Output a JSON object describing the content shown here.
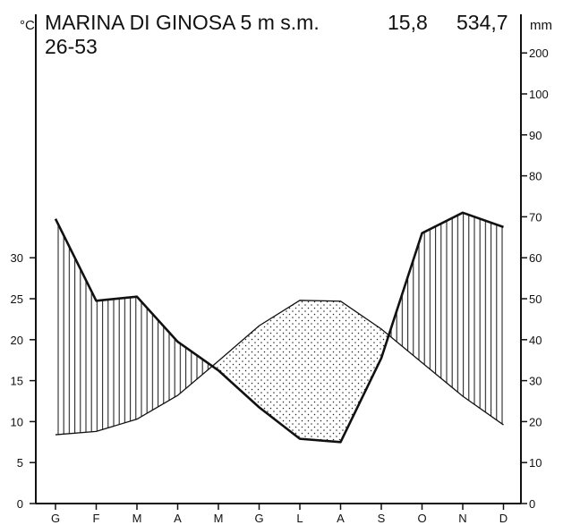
{
  "chart_data": {
    "type": "climatogram",
    "station": "MARINA DI GINOSA 5 m s.m.",
    "mean_temperature": "15,8",
    "annual_precipitation": "534,7",
    "period": "26-53",
    "left_unit": "°C",
    "right_unit": "mm",
    "categories": [
      "G",
      "F",
      "M",
      "A",
      "M",
      "G",
      "L",
      "A",
      "S",
      "O",
      "N",
      "D"
    ],
    "temperature": {
      "unit": "°C",
      "values": [
        8.4,
        8.8,
        10.3,
        13.2,
        17.4,
        21.7,
        24.8,
        24.7,
        21.3,
        17.2,
        13.1,
        9.6
      ],
      "ylim": [
        0,
        40
      ],
      "ticks": [
        0,
        5,
        10,
        15,
        20,
        25,
        30
      ]
    },
    "precipitation": {
      "unit": "mm",
      "values": [
        69.5,
        49.5,
        50.5,
        39.5,
        32.5,
        23.5,
        15.8,
        15.0,
        35.5,
        66.0,
        71.0,
        67.5
      ],
      "ylim": [
        0,
        200
      ],
      "ticks": [
        0,
        10,
        20,
        30,
        40,
        50,
        60,
        70,
        80,
        90,
        100,
        200
      ]
    },
    "legend": null
  }
}
